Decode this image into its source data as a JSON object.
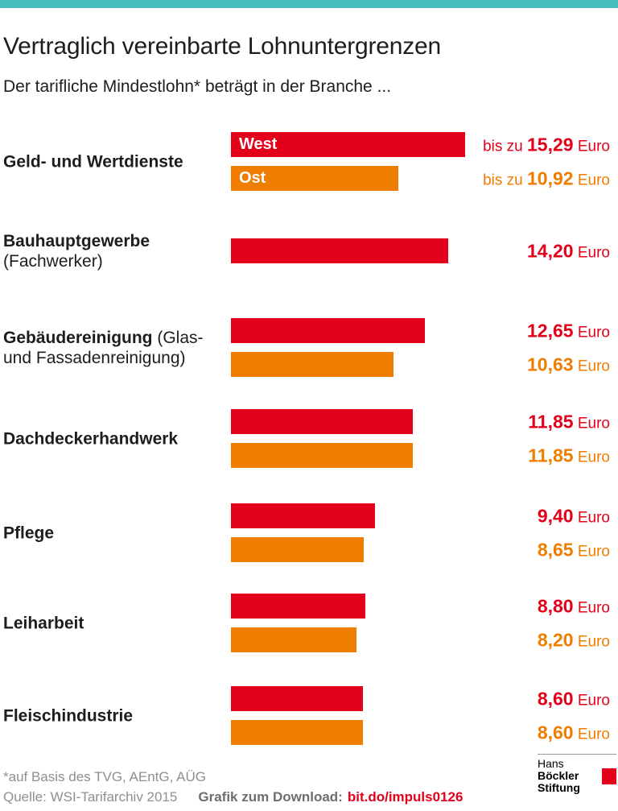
{
  "colors": {
    "red": "#e2001a",
    "orange": "#ef7d00",
    "teal": "#45bcbe",
    "text_dark": "#1d1d1b",
    "text_gray": "#8f8f8f"
  },
  "header": {
    "title": "Vertraglich vereinbarte Lohnuntergrenzen",
    "subtitle": "Der tarifliche Mindestlohn* beträgt in der Branche ..."
  },
  "chart_data": {
    "type": "bar",
    "orientation": "horizontal",
    "title": "Vertraglich vereinbarte Lohnuntergrenzen",
    "unit": "Euro",
    "value_axis_max": 15.29,
    "legend_position": "in-bar-first-row",
    "categories": [
      "Geld- und Wertdienste",
      "Bauhauptgewerbe (Fachwerker)",
      "Gebäudereinigung (Glas- und Fassadenreinigung)",
      "Dachdeckerhandwerk",
      "Pflege",
      "Leiharbeit",
      "Fleischindustrie"
    ],
    "series": [
      {
        "name": "West",
        "color": "#e2001a",
        "values": [
          15.29,
          14.2,
          12.65,
          11.85,
          9.4,
          8.8,
          8.6
        ]
      },
      {
        "name": "Ost",
        "color": "#ef7d00",
        "values": [
          10.92,
          null,
          10.63,
          11.85,
          8.65,
          8.2,
          8.6
        ]
      }
    ],
    "rows": [
      {
        "label_lines": [
          [
            {
              "text": "Geld- und Wertdienste",
              "bold": true
            }
          ]
        ],
        "bars": [
          {
            "series": "West",
            "value": 15.29,
            "display": "15,29",
            "prefix": "bis zu ",
            "in_bar_label": "West"
          },
          {
            "series": "Ost",
            "value": 10.92,
            "display": "10,92",
            "prefix": "bis zu ",
            "in_bar_label": "Ost"
          }
        ]
      },
      {
        "label_lines": [
          [
            {
              "text": "Bauhauptgewerbe",
              "bold": true
            }
          ],
          [
            {
              "text": "(Fachwerker)",
              "bold": false
            }
          ]
        ],
        "bars": [
          {
            "series": "West",
            "value": 14.2,
            "display": "14,20"
          }
        ]
      },
      {
        "label_lines": [
          [
            {
              "text": "Gebäudereinigung",
              "bold": true
            },
            {
              "text": " (Glas-",
              "bold": false
            }
          ],
          [
            {
              "text": "und Fassadenreinigung)",
              "bold": false
            }
          ]
        ],
        "bars": [
          {
            "series": "West",
            "value": 12.65,
            "display": "12,65"
          },
          {
            "series": "Ost",
            "value": 10.63,
            "display": "10,63"
          }
        ]
      },
      {
        "label_lines": [
          [
            {
              "text": "Dachdeckerhandwerk",
              "bold": true
            }
          ]
        ],
        "bars": [
          {
            "series": "West",
            "value": 11.85,
            "display": "11,85"
          },
          {
            "series": "Ost",
            "value": 11.85,
            "display": "11,85"
          }
        ]
      },
      {
        "label_lines": [
          [
            {
              "text": "Pflege",
              "bold": true
            }
          ]
        ],
        "bars": [
          {
            "series": "West",
            "value": 9.4,
            "display": "9,40"
          },
          {
            "series": "Ost",
            "value": 8.65,
            "display": "8,65"
          }
        ]
      },
      {
        "label_lines": [
          [
            {
              "text": "Leiharbeit",
              "bold": true
            }
          ]
        ],
        "bars": [
          {
            "series": "West",
            "value": 8.8,
            "display": "8,80"
          },
          {
            "series": "Ost",
            "value": 8.2,
            "display": "8,20"
          }
        ]
      },
      {
        "label_lines": [
          [
            {
              "text": "Fleischindustrie",
              "bold": true
            }
          ]
        ],
        "bars": [
          {
            "series": "West",
            "value": 8.6,
            "display": "8,60"
          },
          {
            "series": "Ost",
            "value": 8.6,
            "display": "8,60"
          }
        ]
      }
    ]
  },
  "footer": {
    "note": "*auf Basis des TVG, AEntG, AÜG",
    "source": "Quelle: WSI-Tarifarchiv 2015",
    "download_label": "Grafik zum Download:",
    "download_link": "bit.do/impuls0126",
    "logo": {
      "line1_regular": "Hans",
      "line1_bold": "Böckler",
      "line2_bold": "Stiftung"
    }
  }
}
